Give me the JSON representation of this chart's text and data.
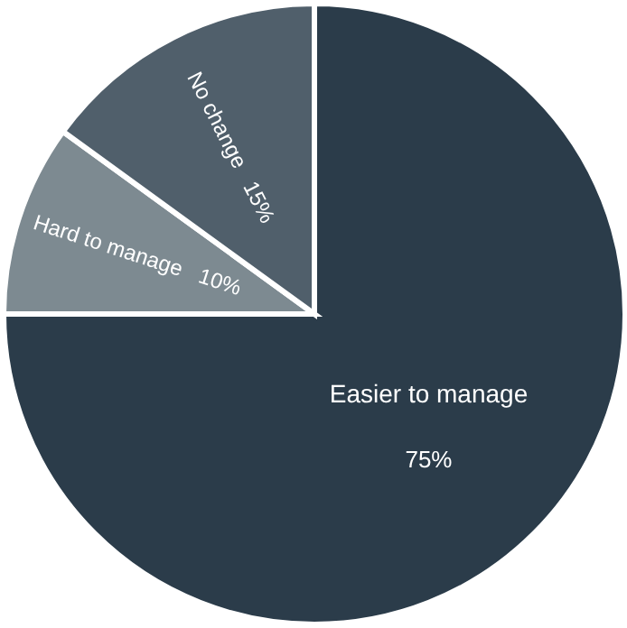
{
  "chart_data": {
    "type": "pie",
    "categories": [
      "Easier to manage",
      "Hard to manage",
      "No change"
    ],
    "values": [
      75,
      10,
      15
    ],
    "value_labels": [
      "75%",
      "10%",
      "15%"
    ],
    "colors": [
      "#2b3c4a",
      "#7d8a91",
      "#505f6b"
    ],
    "legend": false
  }
}
